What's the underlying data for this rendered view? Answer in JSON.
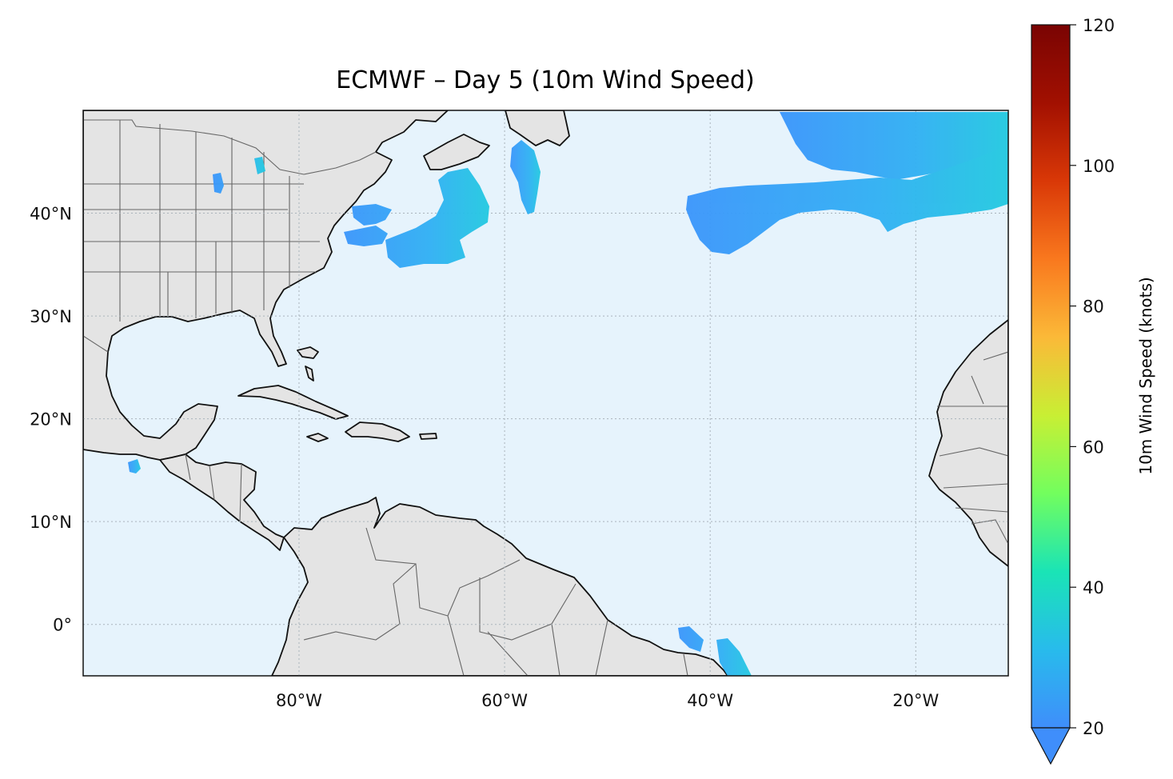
{
  "figure": {
    "title": "ECMWF – Day 5 (10m Wind Speed)"
  },
  "map": {
    "lon_range": [
      -101,
      -11
    ],
    "lat_range": [
      -5,
      50
    ],
    "lon_ticks": [
      {
        "value": -80,
        "label": "80°W"
      },
      {
        "value": -60,
        "label": "60°W"
      },
      {
        "value": -40,
        "label": "40°W"
      },
      {
        "value": -20,
        "label": "20°W"
      }
    ],
    "lat_ticks": [
      {
        "value": 0,
        "label": "0°"
      },
      {
        "value": 10,
        "label": "10°N"
      },
      {
        "value": 20,
        "label": "20°N"
      },
      {
        "value": 30,
        "label": "30°N"
      },
      {
        "value": 40,
        "label": "40°N"
      }
    ],
    "gridlines": true,
    "colors": {
      "ocean": "#e6f3fc",
      "land": "#e4e4e4",
      "coastline": "#111111",
      "borders": "#666666",
      "gridline": "#a9b3bb"
    }
  },
  "colorbar": {
    "label": "10m Wind Speed (knots)",
    "min": 20,
    "max": 120,
    "extend": "min",
    "ticks": [
      20,
      40,
      60,
      80,
      100,
      120
    ],
    "tick_labels": [
      "20",
      "40",
      "60",
      "80",
      "100",
      "120"
    ],
    "colormap": "turbo",
    "stops": [
      "#3f8efb",
      "#28bbec",
      "#1ae4b6",
      "#72fe5e",
      "#c8ef34",
      "#fbb938",
      "#f9781e",
      "#d93807",
      "#a21001",
      "#7a0403"
    ]
  },
  "wind_regions": [
    {
      "name": "north-atlantic-jet-north",
      "lon": [
        -35,
        -11
      ],
      "lat": [
        41,
        50
      ],
      "peak_knots": 30
    },
    {
      "name": "north-atlantic-jet-south",
      "lon": [
        -40,
        -13
      ],
      "lat": [
        36,
        46
      ],
      "peak_knots": 29
    },
    {
      "name": "east-of-new-england",
      "lon": [
        -70,
        -58
      ],
      "lat": [
        35,
        46
      ],
      "peak_knots": 28
    },
    {
      "name": "off-newfoundland",
      "lon": [
        -57,
        -54
      ],
      "lat": [
        40,
        47
      ],
      "peak_knots": 24
    },
    {
      "name": "great-lakes",
      "lon": [
        -88,
        -86
      ],
      "lat": [
        42,
        45
      ],
      "peak_knots": 22
    },
    {
      "name": "gulf-of-tehuantepec",
      "lon": [
        -96,
        -95
      ],
      "lat": [
        15,
        16
      ],
      "peak_knots": 24
    },
    {
      "name": "brazil-northeast-coast",
      "lon": [
        -41,
        -35
      ],
      "lat": [
        -5,
        -1
      ],
      "peak_knots": 27
    }
  ]
}
